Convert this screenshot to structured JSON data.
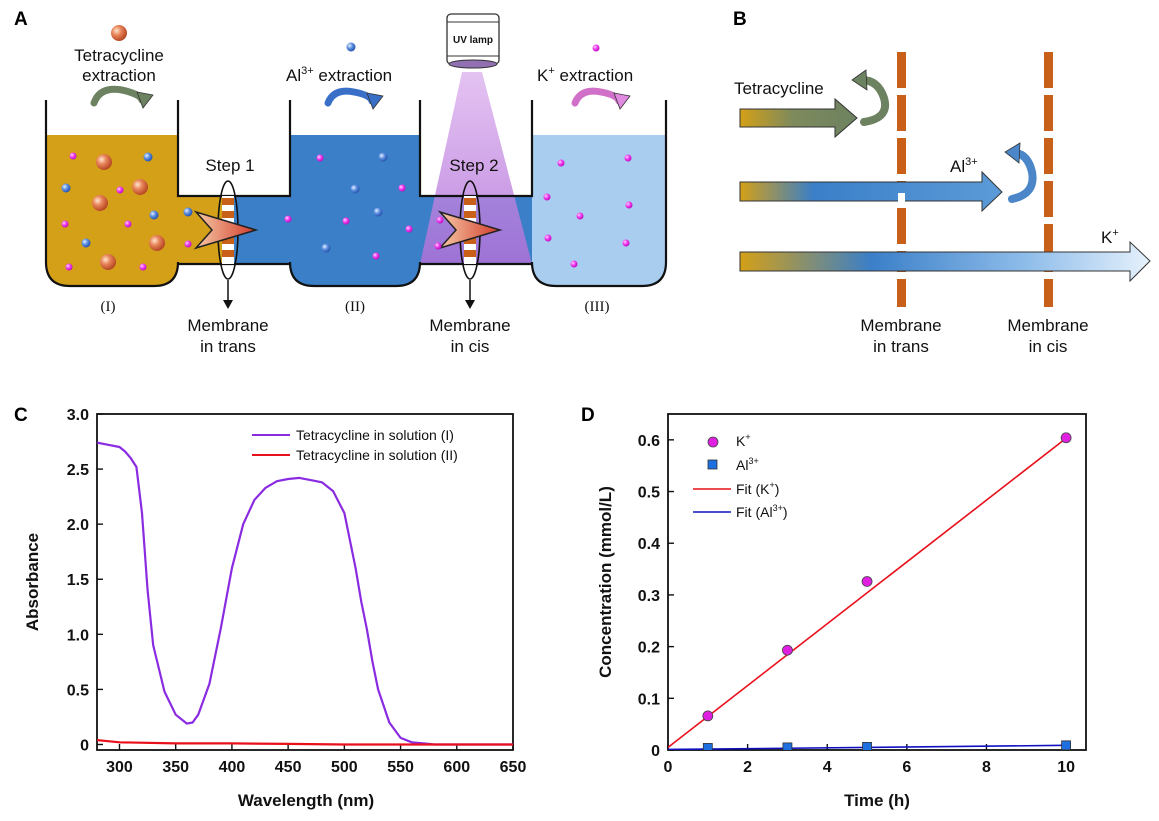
{
  "panels": {
    "a": "A",
    "b": "B",
    "c": "C",
    "d": "D"
  },
  "panelA": {
    "extraction_top_1": "Tetracycline",
    "extraction_top_2": "extraction",
    "al_extraction": "Al",
    "al_sup": "3+",
    "al_extraction_suffix": " extraction",
    "k_extraction": "K",
    "k_sup": "+",
    "k_extraction_suffix": " extraction",
    "uv_lamp": "UV lamp",
    "step1": "Step 1",
    "step2": "Step 2",
    "cell1": "(I)",
    "cell2": "(II)",
    "cell3": "(III)",
    "membrane_trans_1": "Membrane",
    "membrane_trans_2": "in trans",
    "membrane_cis_1": "Membrane",
    "membrane_cis_2": "in cis",
    "colors": {
      "cell1": "#D4A017",
      "cell2": "#3A7FC8",
      "cell3": "#A9CDEF",
      "uv_beam": "#C690E0"
    }
  },
  "panelB": {
    "tetracycline": "Tetracycline",
    "al": "Al",
    "al_sup": "3+",
    "k": "K",
    "k_sup": "+",
    "membrane_trans_1": "Membrane",
    "membrane_trans_2": "in trans",
    "membrane_cis_1": "Membrane",
    "membrane_cis_2": "in cis",
    "colors": {
      "membrane": "#C8601A",
      "tetracycline_arrow": "#6D8260",
      "al_arrow": "#3A7FC8",
      "k_arrow": "#BFD9F2"
    }
  },
  "chart_data": [
    {
      "type": "line",
      "xlabel": "Wavelength (nm)",
      "ylabel": "Absorbance",
      "xlim": [
        280,
        650
      ],
      "ylim": [
        -0.05,
        3.0
      ],
      "xticks": [
        "300",
        "350",
        "400",
        "450",
        "500",
        "550",
        "600",
        "650"
      ],
      "yticks": [
        "0",
        "0.5",
        "1.0",
        "1.5",
        "2.0",
        "2.5",
        "3.0"
      ],
      "legend_position": "top-right",
      "series": [
        {
          "name": "Tetracycline in solution (I)",
          "color": "#8A2BE2",
          "x": [
            280,
            290,
            300,
            305,
            310,
            315,
            320,
            325,
            330,
            340,
            350,
            360,
            365,
            370,
            380,
            390,
            400,
            410,
            420,
            430,
            440,
            450,
            460,
            470,
            480,
            490,
            500,
            505,
            510,
            515,
            520,
            525,
            530,
            540,
            550,
            560,
            570,
            580,
            600,
            620,
            650
          ],
          "y": [
            2.74,
            2.72,
            2.7,
            2.66,
            2.6,
            2.52,
            2.1,
            1.4,
            0.9,
            0.48,
            0.27,
            0.19,
            0.2,
            0.27,
            0.55,
            1.05,
            1.6,
            2.0,
            2.22,
            2.33,
            2.39,
            2.41,
            2.42,
            2.4,
            2.38,
            2.3,
            2.1,
            1.85,
            1.6,
            1.3,
            1.05,
            0.75,
            0.5,
            0.2,
            0.06,
            0.02,
            0.01,
            0.0,
            0.0,
            0.0,
            0.0
          ]
        },
        {
          "name": "Tetracycline in solution (II)",
          "color": "#E8101A",
          "x": [
            280,
            290,
            300,
            350,
            400,
            450,
            500,
            550,
            600,
            650
          ],
          "y": [
            0.04,
            0.03,
            0.02,
            0.01,
            0.01,
            0.005,
            0.0,
            0.0,
            0.0,
            0.0
          ]
        }
      ]
    },
    {
      "type": "scatter",
      "xlabel": "Time (h)",
      "ylabel": "Concentration (mmol/L)",
      "xlim": [
        0,
        10.5
      ],
      "ylim": [
        0,
        0.65
      ],
      "xticks": [
        "0",
        "2",
        "4",
        "6",
        "8",
        "10"
      ],
      "yticks": [
        "0",
        "0.1",
        "0.2",
        "0.3",
        "0.4",
        "0.5",
        "0.6"
      ],
      "legend_position": "top-left",
      "legend": {
        "k": "K",
        "k_sup": "+",
        "al": "Al",
        "al_sup": "3+",
        "fit_k": "Fit (K",
        "fit_k_sup": "+",
        "fit_k_end": ")",
        "fit_al": "Fit (Al",
        "fit_al_sup": "3+",
        "fit_al_end": ")"
      },
      "series": [
        {
          "name": "K+",
          "color": "#E020E0",
          "x": [
            1,
            3,
            5,
            10
          ],
          "y": [
            0.066,
            0.193,
            0.326,
            0.604
          ]
        },
        {
          "name": "Al3+",
          "color": "#1E6FE0",
          "x": [
            1,
            3,
            5,
            10
          ],
          "y": [
            0.004,
            0.005,
            0.006,
            0.009
          ]
        },
        {
          "name": "Fit (K+)",
          "color": "#E8101A",
          "x": [
            0,
            10
          ],
          "y": [
            0.005,
            0.603
          ]
        },
        {
          "name": "Fit (Al3+)",
          "color": "#1010C0",
          "x": [
            0,
            10
          ],
          "y": [
            0.001,
            0.009
          ]
        }
      ]
    }
  ]
}
